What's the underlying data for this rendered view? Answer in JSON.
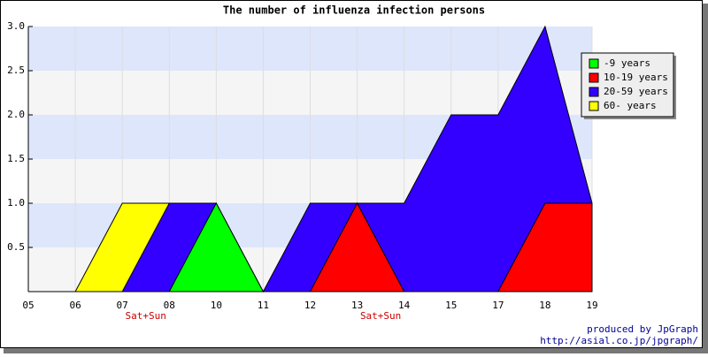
{
  "chart_data": {
    "type": "area",
    "title": "The number of influenza infection persons",
    "categories": [
      "05",
      "06",
      "07",
      "08",
      "10",
      "11",
      "12",
      "13",
      "14",
      "15",
      "17",
      "18",
      "19"
    ],
    "series": [
      {
        "name": "-9 years",
        "color": "#00ff00",
        "values": [
          0,
          0,
          0,
          0,
          1,
          0,
          0,
          0,
          0,
          0,
          0,
          0,
          0
        ]
      },
      {
        "name": "10-19 years",
        "color": "#ff0000",
        "values": [
          0,
          0,
          0,
          0,
          0,
          0,
          0,
          1,
          0,
          0,
          0,
          1,
          1
        ]
      },
      {
        "name": "20-59 years",
        "color": "#3300ff",
        "values": [
          0,
          0,
          0,
          1,
          1,
          0,
          1,
          1,
          1,
          2,
          2,
          3,
          1
        ]
      },
      {
        "name": "60- years",
        "color": "#ffff00",
        "values": [
          0,
          0,
          1,
          1,
          0,
          0,
          0,
          0,
          0,
          0,
          0,
          0,
          0
        ]
      }
    ],
    "ylim": [
      0,
      3
    ],
    "yticks": [
      {
        "value": 0.5,
        "label": "0.5"
      },
      {
        "value": 1,
        "label": "1.0"
      },
      {
        "value": 1.5,
        "label": "1.5"
      },
      {
        "value": 2,
        "label": "2.0"
      },
      {
        "value": 2.5,
        "label": "2.5"
      },
      {
        "value": 3,
        "label": "3.0"
      }
    ],
    "grid": true,
    "legend": "upper right",
    "annotations": [
      "Sat+Sun",
      "Sat+Sun"
    ],
    "credits": [
      "produced by JpGraph",
      "http://asial.co.jp/jpgraph/"
    ]
  }
}
